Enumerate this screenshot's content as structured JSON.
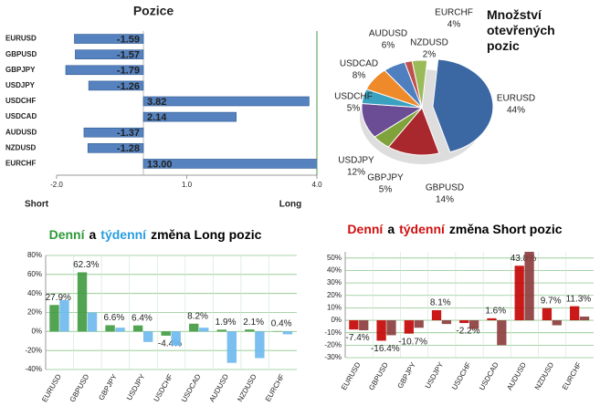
{
  "chart_data": [
    {
      "type": "hbar",
      "title": "Pozice",
      "categories": [
        "EURUSD",
        "GBPUSD",
        "GBPJPY",
        "USDJPY",
        "USDCHF",
        "USDCAD",
        "AUDUSD",
        "NZDUSD",
        "EURCHF"
      ],
      "values": [
        -1.59,
        -1.57,
        -1.79,
        -1.26,
        3.82,
        2.14,
        -1.37,
        -1.28,
        13
      ],
      "value_labels": [
        "-1.59",
        "-1.57",
        "-1.79",
        "-1.26",
        "3.82",
        "2.14",
        "-1.37",
        "-1.28",
        "13.00"
      ],
      "color": "#5683bf",
      "xlim": [
        -2,
        4
      ],
      "xticks": [
        {
          "value": -2,
          "label": "-2.0"
        },
        {
          "value": 1,
          "label": "1.0"
        },
        {
          "value": 4,
          "label": "4.0"
        }
      ],
      "xlabel_left": "Short",
      "xlabel_right": "Long"
    },
    {
      "type": "pie",
      "title": "Množství otevřených pozic",
      "categories": [
        "EURUSD",
        "GBPUSD",
        "GBPJPY",
        "USDJPY",
        "USDCHF",
        "USDCAD",
        "AUDUSD",
        "NZDUSD",
        "EURCHF"
      ],
      "values": [
        44,
        14,
        5,
        12,
        5,
        8,
        6,
        2,
        4
      ],
      "value_labels": [
        "44%",
        "14%",
        "5%",
        "12%",
        "5%",
        "8%",
        "6%",
        "2%",
        "4%"
      ],
      "colors": [
        "#3b67a3",
        "#a8282d",
        "#7fa33a",
        "#6a4d94",
        "#3aa1c0",
        "#ee8a2a",
        "#4f7fbf",
        "#c0504d",
        "#9bbb59"
      ]
    },
    {
      "type": "bar",
      "title": [
        "Denní",
        "a",
        "týdenní",
        "změna Long pozic"
      ],
      "title_colors": [
        "#2e9a3a",
        "#000000",
        "#2a9ee0",
        "#000000"
      ],
      "categories": [
        "EURUSD",
        "GBPUSD",
        "GBPJPY",
        "USDJPY",
        "USDCHF",
        "USDCAD",
        "AUDUSD",
        "NZDUSD",
        "EURCHF"
      ],
      "series": [
        {
          "color": "#3f9a3f",
          "values": [
            27.9,
            62.3,
            6.6,
            6.4,
            -4.4,
            8.2,
            1.9,
            2.1,
            0.4
          ],
          "value_labels": [
            "27.9%",
            "62.3%",
            "6.6%",
            "6.4%",
            "-4.4%",
            "8.2%",
            "1.9%",
            "2.1%",
            "0.4%"
          ]
        },
        {
          "color": "#6bb8ee",
          "values": [
            33,
            20,
            4,
            -11,
            -15,
            4,
            -33,
            -28,
            -3
          ]
        }
      ],
      "ylim": [
        -40,
        80
      ],
      "yticks": [
        {
          "value": -40,
          "label": "-40%"
        },
        {
          "value": -20,
          "label": "-20%"
        },
        {
          "value": 0,
          "label": "0%"
        },
        {
          "value": 20,
          "label": "20%"
        },
        {
          "value": 40,
          "label": "40%"
        },
        {
          "value": 60,
          "label": "60%"
        },
        {
          "value": 80,
          "label": "80%"
        }
      ],
      "grid": true
    },
    {
      "type": "bar",
      "title": [
        "Denní",
        "a",
        "týdenní",
        "změna Short pozic"
      ],
      "title_colors": [
        "#d01010",
        "#000000",
        "#d01010",
        "#000000"
      ],
      "categories": [
        "EURUSD",
        "GBPUSD",
        "GBPJPY",
        "USDJPY",
        "USDCHF",
        "USDCAD",
        "AUDUSD",
        "NZDUSD",
        "EURCHF"
      ],
      "series": [
        {
          "color": "#c40000",
          "values": [
            -7.4,
            -16.4,
            -10.7,
            8.1,
            -2.2,
            1.6,
            43.8,
            9.7,
            11.3
          ],
          "value_labels": [
            "-7.4%",
            "-16.4%",
            "-10.7%",
            "8.1%",
            "-2.2%",
            "1.6%",
            "43.8%",
            "9.7%",
            "11.3%"
          ]
        },
        {
          "color": "#8a3a3a",
          "values": [
            -8,
            -12,
            -6,
            -3,
            -7,
            -20,
            55,
            -4,
            3
          ]
        }
      ],
      "ylim": [
        -30,
        55
      ],
      "yticks": [
        {
          "value": -30,
          "label": "-30%"
        },
        {
          "value": -20,
          "label": "-20%"
        },
        {
          "value": -10,
          "label": "-10%"
        },
        {
          "value": 0,
          "label": "0%"
        },
        {
          "value": 10,
          "label": "10%"
        },
        {
          "value": 20,
          "label": "20%"
        },
        {
          "value": 30,
          "label": "30%"
        },
        {
          "value": 40,
          "label": "40%"
        },
        {
          "value": 50,
          "label": "50%"
        }
      ],
      "grid": true
    }
  ]
}
